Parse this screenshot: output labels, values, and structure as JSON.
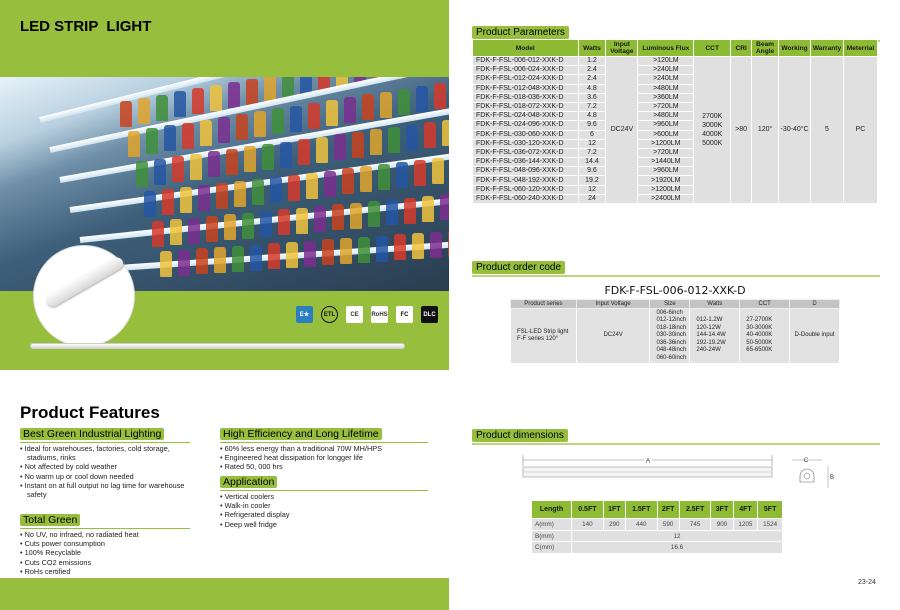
{
  "left_page": {
    "title": "LED STRIP  LIGHT",
    "certifications": [
      "energy-star",
      "etl",
      "ce",
      "rohs",
      "fcc",
      "dlc"
    ],
    "features_title": "Product Features",
    "sections": [
      {
        "heading": "Best Green Industrial Lighting",
        "items": [
          "Ideal for warehouses, factories, cold storage, stadiums, rinks",
          " Not affected by cold weather",
          "No warm up or cool down needed",
          "Instant on at full output no lag time for warehouse safety"
        ]
      },
      {
        "heading": "Total Green",
        "items": [
          "No UV, no infraed, no radiated heat",
          "Cuts power consumption",
          "100% Recyclable",
          "Cuts CO2 emissions",
          "RoHs certified"
        ]
      },
      {
        "heading": "High Efficiency and Long Lifetime",
        "items": [
          "60% less energy than a traditional 70W MH/HPS",
          "Engineered heat dissipation for longger life",
          "Rated 50, 000 hrs"
        ]
      },
      {
        "heading": "Application",
        "items": [
          "Vertical coolers",
          "Walk-in cooler",
          "Refrigerated display",
          "Deep well fridge"
        ]
      }
    ]
  },
  "parameters": {
    "heading": "Product Parameters",
    "columns": [
      "Model",
      "Watts",
      "Input Voltage",
      "Luminous Flux",
      "CCT",
      "CRI",
      "Beam Angle",
      "Working",
      "Warranty",
      "Meterrial"
    ],
    "rows": [
      [
        "FDK-F-FSL-006-012-XXK-D",
        "1.2",
        ">120LM"
      ],
      [
        "FDK-F-FSL-006-024-XXK-D",
        "2.4",
        ">240LM"
      ],
      [
        "FDK-F-FSL-012-024-XXK-D",
        "2.4",
        ">240LM"
      ],
      [
        "FDK-F-FSL-012-048-XXK-D",
        "4.8",
        ">480LM"
      ],
      [
        "FDK-F-FSL-018-036-XXK-D",
        "3.6",
        ">360LM"
      ],
      [
        "FDK-F-FSL-018-072-XXK-D",
        "7.2",
        ">720LM"
      ],
      [
        "FDK-F-FSL-024-048-XXK-D",
        "4.8",
        ">480LM"
      ],
      [
        "FDK-F-FSL-024-096-XXK-D",
        "9.6",
        ">960LM"
      ],
      [
        "FDK-F-FSL-030-060-XXK-D",
        "6",
        ">600LM"
      ],
      [
        "FDK-F-FSL-030-120-XXK-D",
        "12",
        ">1200LM"
      ],
      [
        "FDK-F-FSL-036-072-XXK-D",
        "7.2",
        ">720LM"
      ],
      [
        "FDK-F-FSL-036-144-XXK-D",
        "14.4",
        ">1440LM"
      ],
      [
        "FDK-F-FSL-048-096-XXK-D",
        "9.6",
        ">960LM"
      ],
      [
        "FDK-F-FSL-048-192-XXK-D",
        "19.2",
        ">1920LM"
      ],
      [
        "FDK-F-FSL-060-120-XXK-D",
        "12",
        ">1200LM"
      ],
      [
        "FDK-F-FSL-060-240-XXK-D",
        "24",
        ">2400LM"
      ]
    ],
    "shared": {
      "voltage": "DC24V",
      "cct": [
        "2700K",
        "3000K",
        "4000K",
        "5000K"
      ],
      "cri": ">80",
      "beam": "120°",
      "working": "-30-40°C",
      "warranty": "5",
      "material": "PC"
    }
  },
  "order": {
    "heading": "Product order code",
    "code": "FDK-F-FSL-006-012-XXK-D",
    "columns": [
      "Product series",
      "Input Voltage",
      "Size",
      "Watts",
      "CCT",
      "D"
    ],
    "row": {
      "series": [
        "FSL-LED Strip light",
        "F-F series  120°"
      ],
      "voltage": "DC24V",
      "size": [
        "006-6inch",
        "012-12inch",
        "018-18inch",
        "030-30inch",
        "036-36inch",
        "048-48inch",
        "060-60inch"
      ],
      "watts": [
        "012-1.2W",
        "120-12W",
        "144-14.4W",
        "192-19.2W",
        "240-24W"
      ],
      "cct": [
        "27-2700K",
        "30-3000K",
        "40-4000K",
        "50-5000K",
        "65-6500K"
      ],
      "d": "D-Double input"
    }
  },
  "dimensions": {
    "heading": "Product dimensions",
    "labels": {
      "a": "A",
      "b": "B",
      "c": "C"
    },
    "columns": [
      "Length",
      "0.5FT",
      "1FT",
      "1.5FT",
      "2FT",
      "2.5FT",
      "3FT",
      "4FT",
      "5FT"
    ],
    "a_label": "A(mm)",
    "a_values": [
      "140",
      "290",
      "440",
      "590",
      "745",
      "900",
      "1205",
      "1524"
    ],
    "b_label": "B(mm)",
    "b_value": "12",
    "c_label": "C(mm)",
    "c_value": "16.6"
  },
  "page_number": "23-24",
  "colors": {
    "accent": "#97bf3d",
    "table_header": "#8dbb34"
  }
}
